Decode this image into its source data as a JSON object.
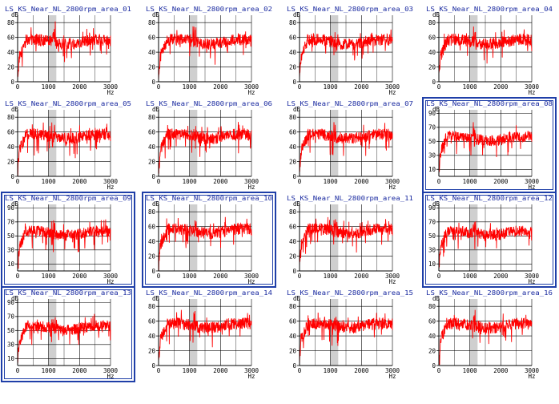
{
  "colors": {
    "signal": "#ff0000",
    "band": "#cfcfcf",
    "title": "#1a2aa0",
    "frame": "#1f3fa8",
    "axis": "#000000"
  },
  "chart_data": [
    {
      "type": "line",
      "title": "LS_KS_Near_NL_2800rpm_area_01",
      "xlabel": "Hz",
      "ylabel": "dB",
      "xlim": [
        0,
        3000
      ],
      "ylim": [
        0,
        90
      ],
      "xticks": [
        0,
        1000,
        2000,
        3000
      ],
      "yticks": [
        0,
        20,
        40,
        60,
        80
      ],
      "selected": false,
      "highlight_band": [
        1000,
        1250
      ],
      "series": [
        {
          "name": "",
          "approx_level_dB": 57
        }
      ]
    },
    {
      "type": "line",
      "title": "LS_KS_Near_NL_2800rpm_area_02",
      "xlabel": "Hz",
      "ylabel": "dB",
      "xlim": [
        0,
        3000
      ],
      "ylim": [
        0,
        90
      ],
      "xticks": [
        0,
        1000,
        2000,
        3000
      ],
      "yticks": [
        0,
        20,
        40,
        60,
        80
      ],
      "selected": false,
      "highlight_band": [
        1000,
        1250
      ],
      "series": [
        {
          "name": "",
          "approx_level_dB": 57
        }
      ]
    },
    {
      "type": "line",
      "title": "LS_KS_Near_NL_2800rpm_area_03",
      "xlabel": "Hz",
      "ylabel": "dB",
      "xlim": [
        0,
        3000
      ],
      "ylim": [
        0,
        90
      ],
      "xticks": [
        0,
        1000,
        2000,
        3000
      ],
      "yticks": [
        0,
        20,
        40,
        60,
        80
      ],
      "selected": false,
      "highlight_band": [
        1000,
        1250
      ],
      "series": [
        {
          "name": "",
          "approx_level_dB": 57
        }
      ]
    },
    {
      "type": "line",
      "title": "LS_KS_Near_NL_2800rpm_area_04",
      "xlabel": "Hz",
      "ylabel": "dB",
      "xlim": [
        0,
        3000
      ],
      "ylim": [
        0,
        90
      ],
      "xticks": [
        0,
        1000,
        2000,
        3000
      ],
      "yticks": [
        0,
        20,
        40,
        60,
        80
      ],
      "selected": false,
      "highlight_band": [
        1000,
        1250
      ],
      "series": [
        {
          "name": "",
          "approx_level_dB": 57
        }
      ]
    },
    {
      "type": "line",
      "title": "LS_KS_Near_NL_2800rpm_area_05",
      "xlabel": "Hz",
      "ylabel": "dB",
      "xlim": [
        0,
        3000
      ],
      "ylim": [
        0,
        90
      ],
      "xticks": [
        0,
        1000,
        2000,
        3000
      ],
      "yticks": [
        0,
        20,
        40,
        60,
        80
      ],
      "selected": false,
      "highlight_band": [
        1000,
        1250
      ],
      "series": [
        {
          "name": "",
          "approx_level_dB": 57
        }
      ]
    },
    {
      "type": "line",
      "title": "LS_KS_Near_NL_2800rpm_area_06",
      "xlabel": "Hz",
      "ylabel": "dB",
      "xlim": [
        0,
        3000
      ],
      "ylim": [
        0,
        90
      ],
      "xticks": [
        0,
        1000,
        2000,
        3000
      ],
      "yticks": [
        0,
        20,
        40,
        60,
        80
      ],
      "selected": false,
      "highlight_band": [
        1000,
        1250
      ],
      "series": [
        {
          "name": "",
          "approx_level_dB": 57
        }
      ]
    },
    {
      "type": "line",
      "title": "LS_KS_Near_NL_2800rpm_area_07",
      "xlabel": "Hz",
      "ylabel": "dB",
      "xlim": [
        0,
        3000
      ],
      "ylim": [
        0,
        90
      ],
      "xticks": [
        0,
        1000,
        2000,
        3000
      ],
      "yticks": [
        0,
        20,
        40,
        60,
        80
      ],
      "selected": false,
      "highlight_band": [
        1000,
        1250
      ],
      "series": [
        {
          "name": "",
          "approx_level_dB": 57
        }
      ]
    },
    {
      "type": "line",
      "title": "LS_KS_Near_NL_2800rpm_area_08",
      "xlabel": "Hz",
      "ylabel": "dB",
      "xlim": [
        0,
        3000
      ],
      "ylim": [
        0,
        95
      ],
      "xticks": [
        0,
        1000,
        2000,
        3000
      ],
      "yticks": [
        10,
        30,
        50,
        70,
        90
      ],
      "selected": true,
      "highlight_band": [
        1000,
        1250
      ],
      "series": [
        {
          "name": "",
          "approx_level_dB": 57
        }
      ]
    },
    {
      "type": "line",
      "title": "LS_KS_Near_NL_2800rpm_area_09",
      "xlabel": "Hz",
      "ylabel": "dB",
      "xlim": [
        0,
        3000
      ],
      "ylim": [
        0,
        95
      ],
      "xticks": [
        0,
        1000,
        2000,
        3000
      ],
      "yticks": [
        10,
        30,
        50,
        70,
        90
      ],
      "selected": true,
      "highlight_band": [
        1000,
        1250
      ],
      "series": [
        {
          "name": "",
          "approx_level_dB": 57
        }
      ]
    },
    {
      "type": "line",
      "title": "LS_KS_Near_NL_2800rpm_area_10",
      "xlabel": "Hz",
      "ylabel": "dB",
      "xlim": [
        0,
        3000
      ],
      "ylim": [
        0,
        90
      ],
      "xticks": [
        0,
        1000,
        2000,
        3000
      ],
      "yticks": [
        0,
        20,
        40,
        60,
        80
      ],
      "selected": true,
      "highlight_band": [
        1000,
        1250
      ],
      "series": [
        {
          "name": "",
          "approx_level_dB": 57
        }
      ]
    },
    {
      "type": "line",
      "title": "LS_KS_Near_NL_2800rpm_area_11",
      "xlabel": "Hz",
      "ylabel": "dB",
      "xlim": [
        0,
        3000
      ],
      "ylim": [
        0,
        90
      ],
      "xticks": [
        0,
        1000,
        2000,
        3000
      ],
      "yticks": [
        0,
        20,
        40,
        60,
        80
      ],
      "selected": false,
      "highlight_band": [
        1000,
        1250
      ],
      "series": [
        {
          "name": "",
          "approx_level_dB": 57
        }
      ]
    },
    {
      "type": "line",
      "title": "LS_KS_Near_NL_2800rpm_area_12",
      "xlabel": "Hz",
      "ylabel": "dB",
      "xlim": [
        0,
        3000
      ],
      "ylim": [
        0,
        95
      ],
      "xticks": [
        0,
        1000,
        2000,
        3000
      ],
      "yticks": [
        10,
        30,
        50,
        70,
        90
      ],
      "selected": true,
      "highlight_band": [
        1000,
        1250
      ],
      "series": [
        {
          "name": "",
          "approx_level_dB": 57
        }
      ]
    },
    {
      "type": "line",
      "title": "LS_KS_Near_NL_2800rpm_area_13",
      "xlabel": "Hz",
      "ylabel": "dB",
      "xlim": [
        0,
        3000
      ],
      "ylim": [
        0,
        95
      ],
      "xticks": [
        0,
        1000,
        2000,
        3000
      ],
      "yticks": [
        10,
        30,
        50,
        70,
        90
      ],
      "selected": true,
      "highlight_band": [
        1000,
        1250
      ],
      "series": [
        {
          "name": "",
          "approx_level_dB": 57
        }
      ]
    },
    {
      "type": "line",
      "title": "LS_KS_Near_NL_2800rpm_area_14",
      "xlabel": "Hz",
      "ylabel": "dB",
      "xlim": [
        0,
        3000
      ],
      "ylim": [
        0,
        90
      ],
      "xticks": [
        0,
        1000,
        2000,
        3000
      ],
      "yticks": [
        0,
        20,
        40,
        60,
        80
      ],
      "selected": false,
      "highlight_band": [
        1000,
        1250
      ],
      "series": [
        {
          "name": "",
          "approx_level_dB": 57
        }
      ]
    },
    {
      "type": "line",
      "title": "LS_KS_Near_NL_2800rpm_area_15",
      "xlabel": "Hz",
      "ylabel": "dB",
      "xlim": [
        0,
        3000
      ],
      "ylim": [
        0,
        90
      ],
      "xticks": [
        0,
        1000,
        2000,
        3000
      ],
      "yticks": [
        0,
        20,
        40,
        60,
        80
      ],
      "selected": false,
      "highlight_band": [
        1000,
        1250
      ],
      "series": [
        {
          "name": "",
          "approx_level_dB": 57
        }
      ]
    },
    {
      "type": "line",
      "title": "LS_KS_Near_NL_2800rpm_area_16",
      "xlabel": "Hz",
      "ylabel": "dB",
      "xlim": [
        0,
        3000
      ],
      "ylim": [
        0,
        90
      ],
      "xticks": [
        0,
        1000,
        2000,
        3000
      ],
      "yticks": [
        0,
        20,
        40,
        60,
        80
      ],
      "selected": false,
      "highlight_band": [
        1000,
        1250
      ],
      "series": [
        {
          "name": "",
          "approx_level_dB": 57
        }
      ]
    }
  ]
}
